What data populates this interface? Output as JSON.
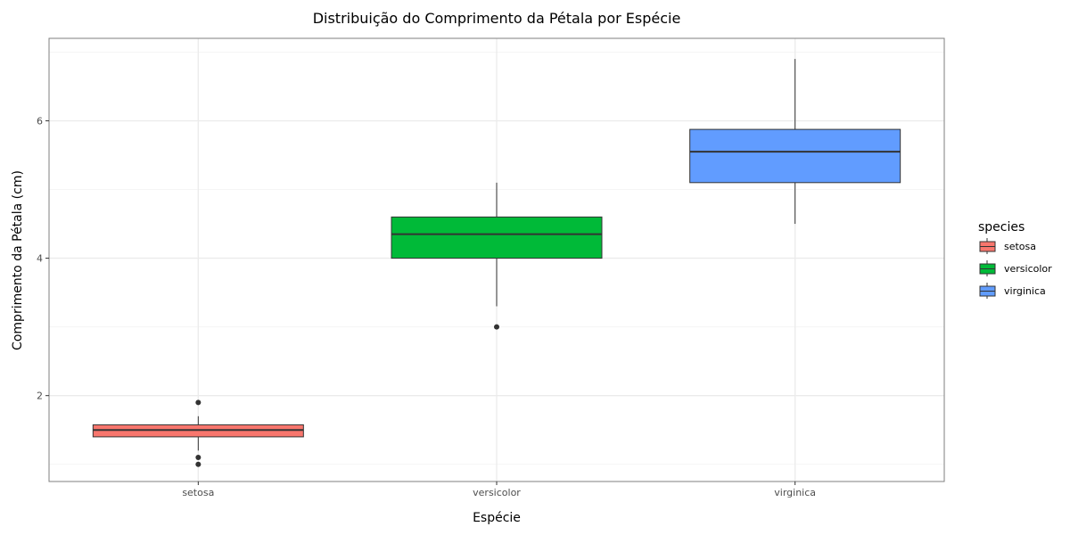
{
  "chart_data": {
    "type": "box",
    "title": "Distribuição do Comprimento da Pétala por Espécie",
    "xlabel": "Espécie",
    "ylabel": "Comprimento da Pétala (cm)",
    "ylim": [
      0.75,
      7.2
    ],
    "yticks": [
      2,
      4,
      6
    ],
    "grid": true,
    "legend": {
      "title": "species",
      "position": "right"
    },
    "categories": [
      "setosa",
      "versicolor",
      "virginica"
    ],
    "series": [
      {
        "name": "setosa",
        "color": "#F8766D",
        "whisker_low": 1.2,
        "q1": 1.4,
        "median": 1.5,
        "q3": 1.575,
        "whisker_high": 1.7,
        "outliers": [
          1.0,
          1.1,
          1.9
        ]
      },
      {
        "name": "versicolor",
        "color": "#00BA38",
        "whisker_low": 3.3,
        "q1": 4.0,
        "median": 4.35,
        "q3": 4.6,
        "whisker_high": 5.1,
        "outliers": [
          3.0
        ]
      },
      {
        "name": "virginica",
        "color": "#619CFF",
        "whisker_low": 4.5,
        "q1": 5.1,
        "median": 5.55,
        "q3": 5.875,
        "whisker_high": 6.9,
        "outliers": []
      }
    ]
  }
}
